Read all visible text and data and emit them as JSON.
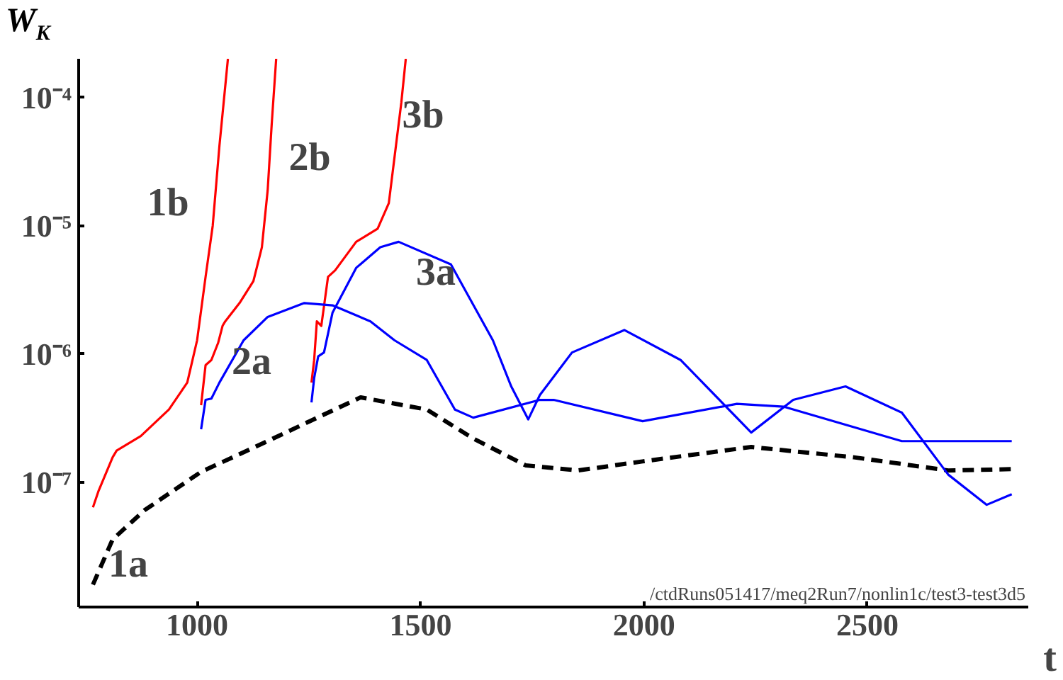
{
  "chart_data": {
    "type": "line",
    "xlabel": "t",
    "ylabel": "W$_{K}$",
    "log": "y",
    "grid": false,
    "xlim": [
      735,
      2860
    ],
    "ylim": [
      1.07e-08,
      0.0002
    ],
    "xticks": [
      1000,
      1500,
      2000,
      2500
    ],
    "yticks": [
      {
        "value": 1e-07,
        "label": "10⁻⁷"
      },
      {
        "value": 1e-06,
        "label": "10⁻⁶"
      },
      {
        "value": 1e-05,
        "label": "10⁻⁵"
      },
      {
        "value": 0.0001,
        "label": "10⁻⁴"
      }
    ],
    "series": [
      {
        "color": "#000000",
        "line_style": "dashed",
        "x": [
          767,
          811,
          883,
          1009,
          1145,
          1252,
          1366,
          1514,
          1618,
          1735,
          1852,
          1997,
          2240,
          2470,
          2681,
          2823
        ],
        "values": [
          1.6e-08,
          3.6e-08,
          6.1e-08,
          1.21e-07,
          2e-07,
          3e-07,
          4.6e-07,
          3.7e-07,
          2.2e-07,
          1.36e-07,
          1.24e-07,
          1.46e-07,
          1.89e-07,
          1.57e-07,
          1.24e-07,
          1.27e-07
        ]
      },
      {
        "color": "#ff0000",
        "line_style": "solid",
        "x": [
          767,
          779,
          811,
          820,
          874,
          937,
          978,
          1000,
          1019,
          1035,
          1050,
          1069
        ],
        "values": [
          6.4e-08,
          8.5e-08,
          1.57e-07,
          1.77e-07,
          2.3e-07,
          3.7e-07,
          6e-07,
          1.28e-06,
          4e-06,
          1e-05,
          4.2e-05,
          0.0002
        ]
      },
      {
        "color": "#ff0000",
        "line_style": "solid",
        "x": [
          1009,
          1019,
          1032,
          1047,
          1057,
          1063,
          1095,
          1126,
          1145,
          1158,
          1167,
          1177
        ],
        "values": [
          4e-07,
          8.2e-07,
          9e-07,
          1.22e-06,
          1.66e-06,
          1.8e-06,
          2.5e-06,
          3.7e-06,
          6.8e-06,
          1.9e-05,
          6.2e-05,
          0.0002
        ]
      },
      {
        "color": "#ff0000",
        "line_style": "solid",
        "x": [
          1256,
          1262,
          1268,
          1278,
          1293,
          1309,
          1356,
          1404,
          1429,
          1445,
          1457,
          1467
        ],
        "values": [
          6e-07,
          9e-07,
          1.8e-06,
          1.66e-06,
          4e-06,
          4.5e-06,
          7.5e-06,
          9.5e-06,
          1.5e-05,
          4.2e-05,
          9.1e-05,
          0.0002
        ]
      },
      {
        "color": "#0000ff",
        "line_style": "solid",
        "x": [
          1009,
          1019,
          1032,
          1050,
          1104,
          1158,
          1240,
          1303,
          1388,
          1442,
          1514,
          1577,
          1618,
          1767,
          1798,
          1997,
          2208,
          2312,
          2577,
          2823
        ],
        "values": [
          2.6e-07,
          4.4e-07,
          4.5e-07,
          6e-07,
          1.28e-06,
          1.95e-06,
          2.5e-06,
          2.4e-06,
          1.8e-06,
          1.28e-06,
          9e-07,
          3.7e-07,
          3.2e-07,
          4.4e-07,
          4.4e-07,
          3e-07,
          4.1e-07,
          3.9e-07,
          2.1e-07,
          2.1e-07
        ]
      },
      {
        "color": "#0000ff",
        "line_style": "solid",
        "x": [
          1256,
          1262,
          1271,
          1284,
          1303,
          1356,
          1410,
          1451,
          1568,
          1662,
          1703,
          1741,
          1767,
          1839,
          1956,
          2082,
          2240,
          2334,
          2451,
          2577,
          2681,
          2767,
          2823
        ],
        "values": [
          4.2e-07,
          6.5e-07,
          9.6e-07,
          1.03e-06,
          2.1e-06,
          4.7e-06,
          6.8e-06,
          7.5e-06,
          5e-06,
          1.28e-06,
          5.6e-07,
          3.1e-07,
          4.8e-07,
          1.03e-06,
          1.54e-06,
          9e-07,
          2.45e-07,
          4.4e-07,
          5.6e-07,
          3.5e-07,
          1.15e-07,
          6.7e-08,
          8.1e-08
        ]
      }
    ],
    "annotations": [
      "1b",
      "2b",
      "3b",
      "3a",
      "2a",
      "1a",
      "/ctdRuns051417/meq2Run7/nonlin1c/test3-test3d5"
    ]
  }
}
